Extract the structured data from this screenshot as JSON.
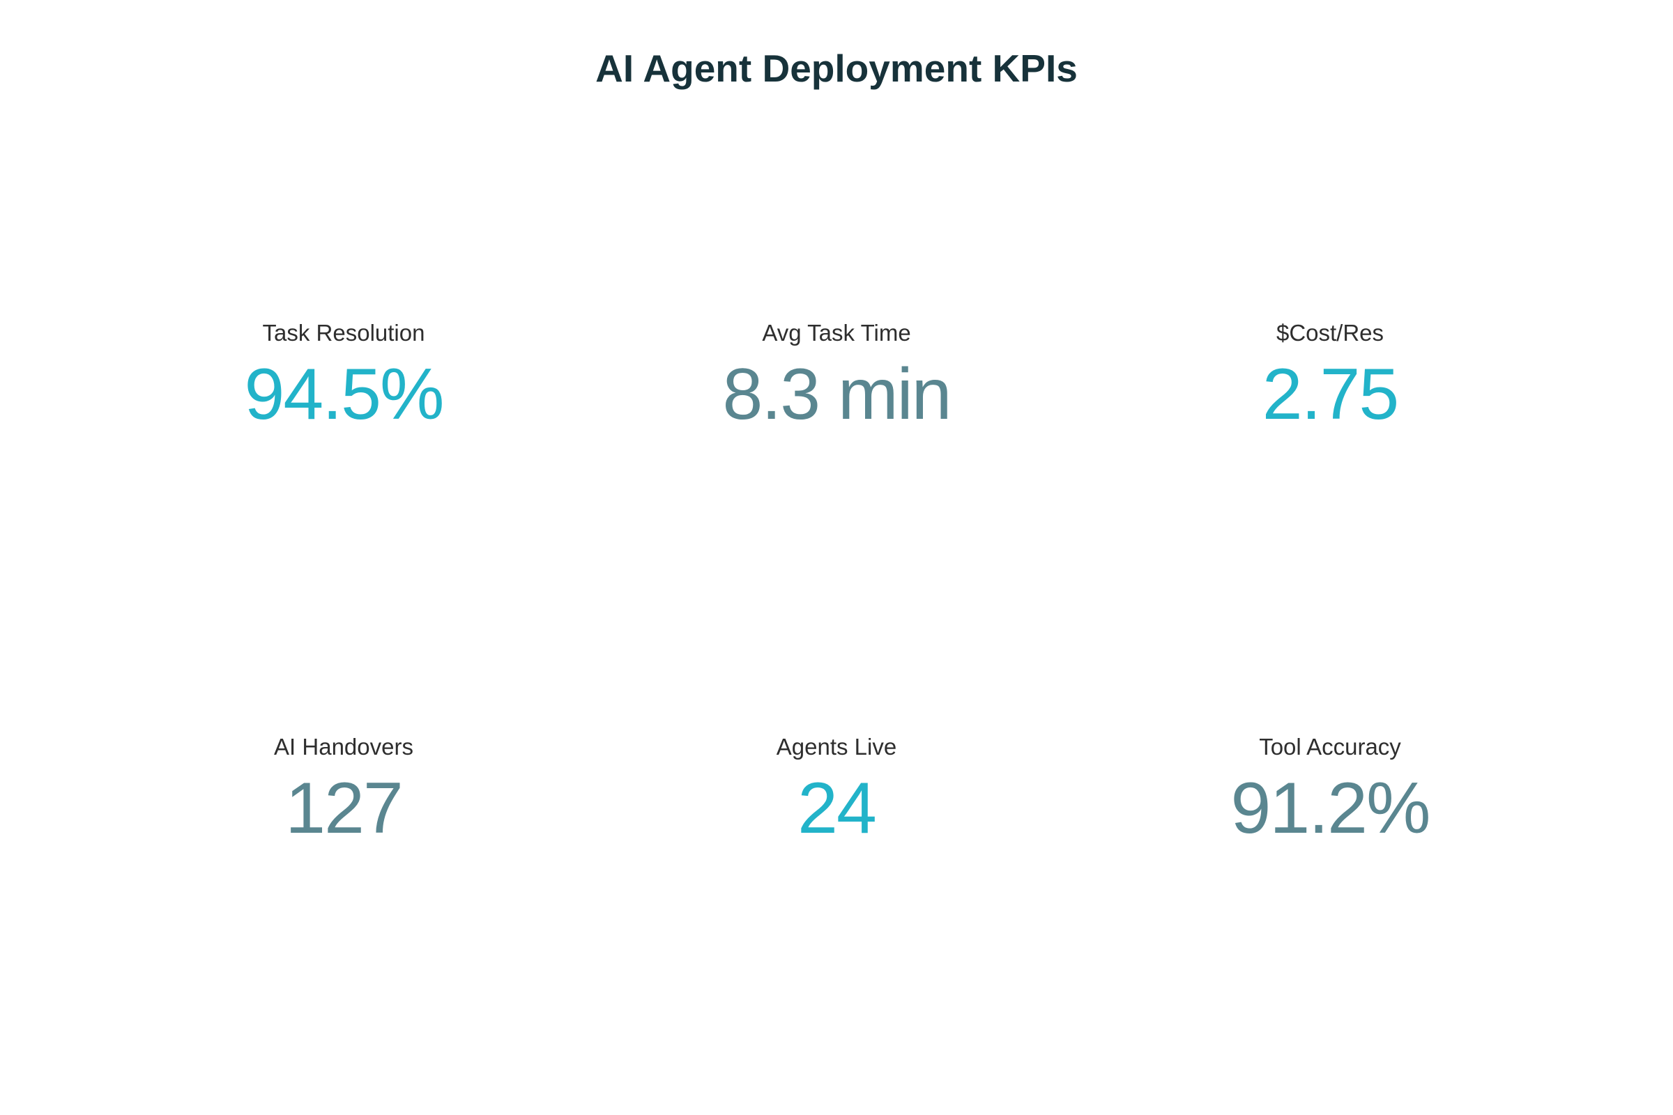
{
  "title": "AI Agent Deployment KPIs",
  "colors": {
    "title": "#17323a",
    "label": "#2e2e2e",
    "accent_cyan": "#22b3c9",
    "accent_slate": "#5a8690"
  },
  "chart_data": {
    "type": "table",
    "title": "AI Agent Deployment KPIs",
    "kpis": [
      {
        "label": "Task Resolution",
        "value": "94.5%",
        "color": "#22b3c9"
      },
      {
        "label": "Avg Task Time",
        "value": "8.3 min",
        "color": "#5a8690"
      },
      {
        "label": "$Cost/Res",
        "value": "2.75",
        "color": "#22b3c9"
      },
      {
        "label": "AI Handovers",
        "value": "127",
        "color": "#5a8690"
      },
      {
        "label": "Agents Live",
        "value": "24",
        "color": "#22b3c9"
      },
      {
        "label": "Tool Accuracy",
        "value": "91.2%",
        "color": "#5a8690"
      }
    ]
  }
}
